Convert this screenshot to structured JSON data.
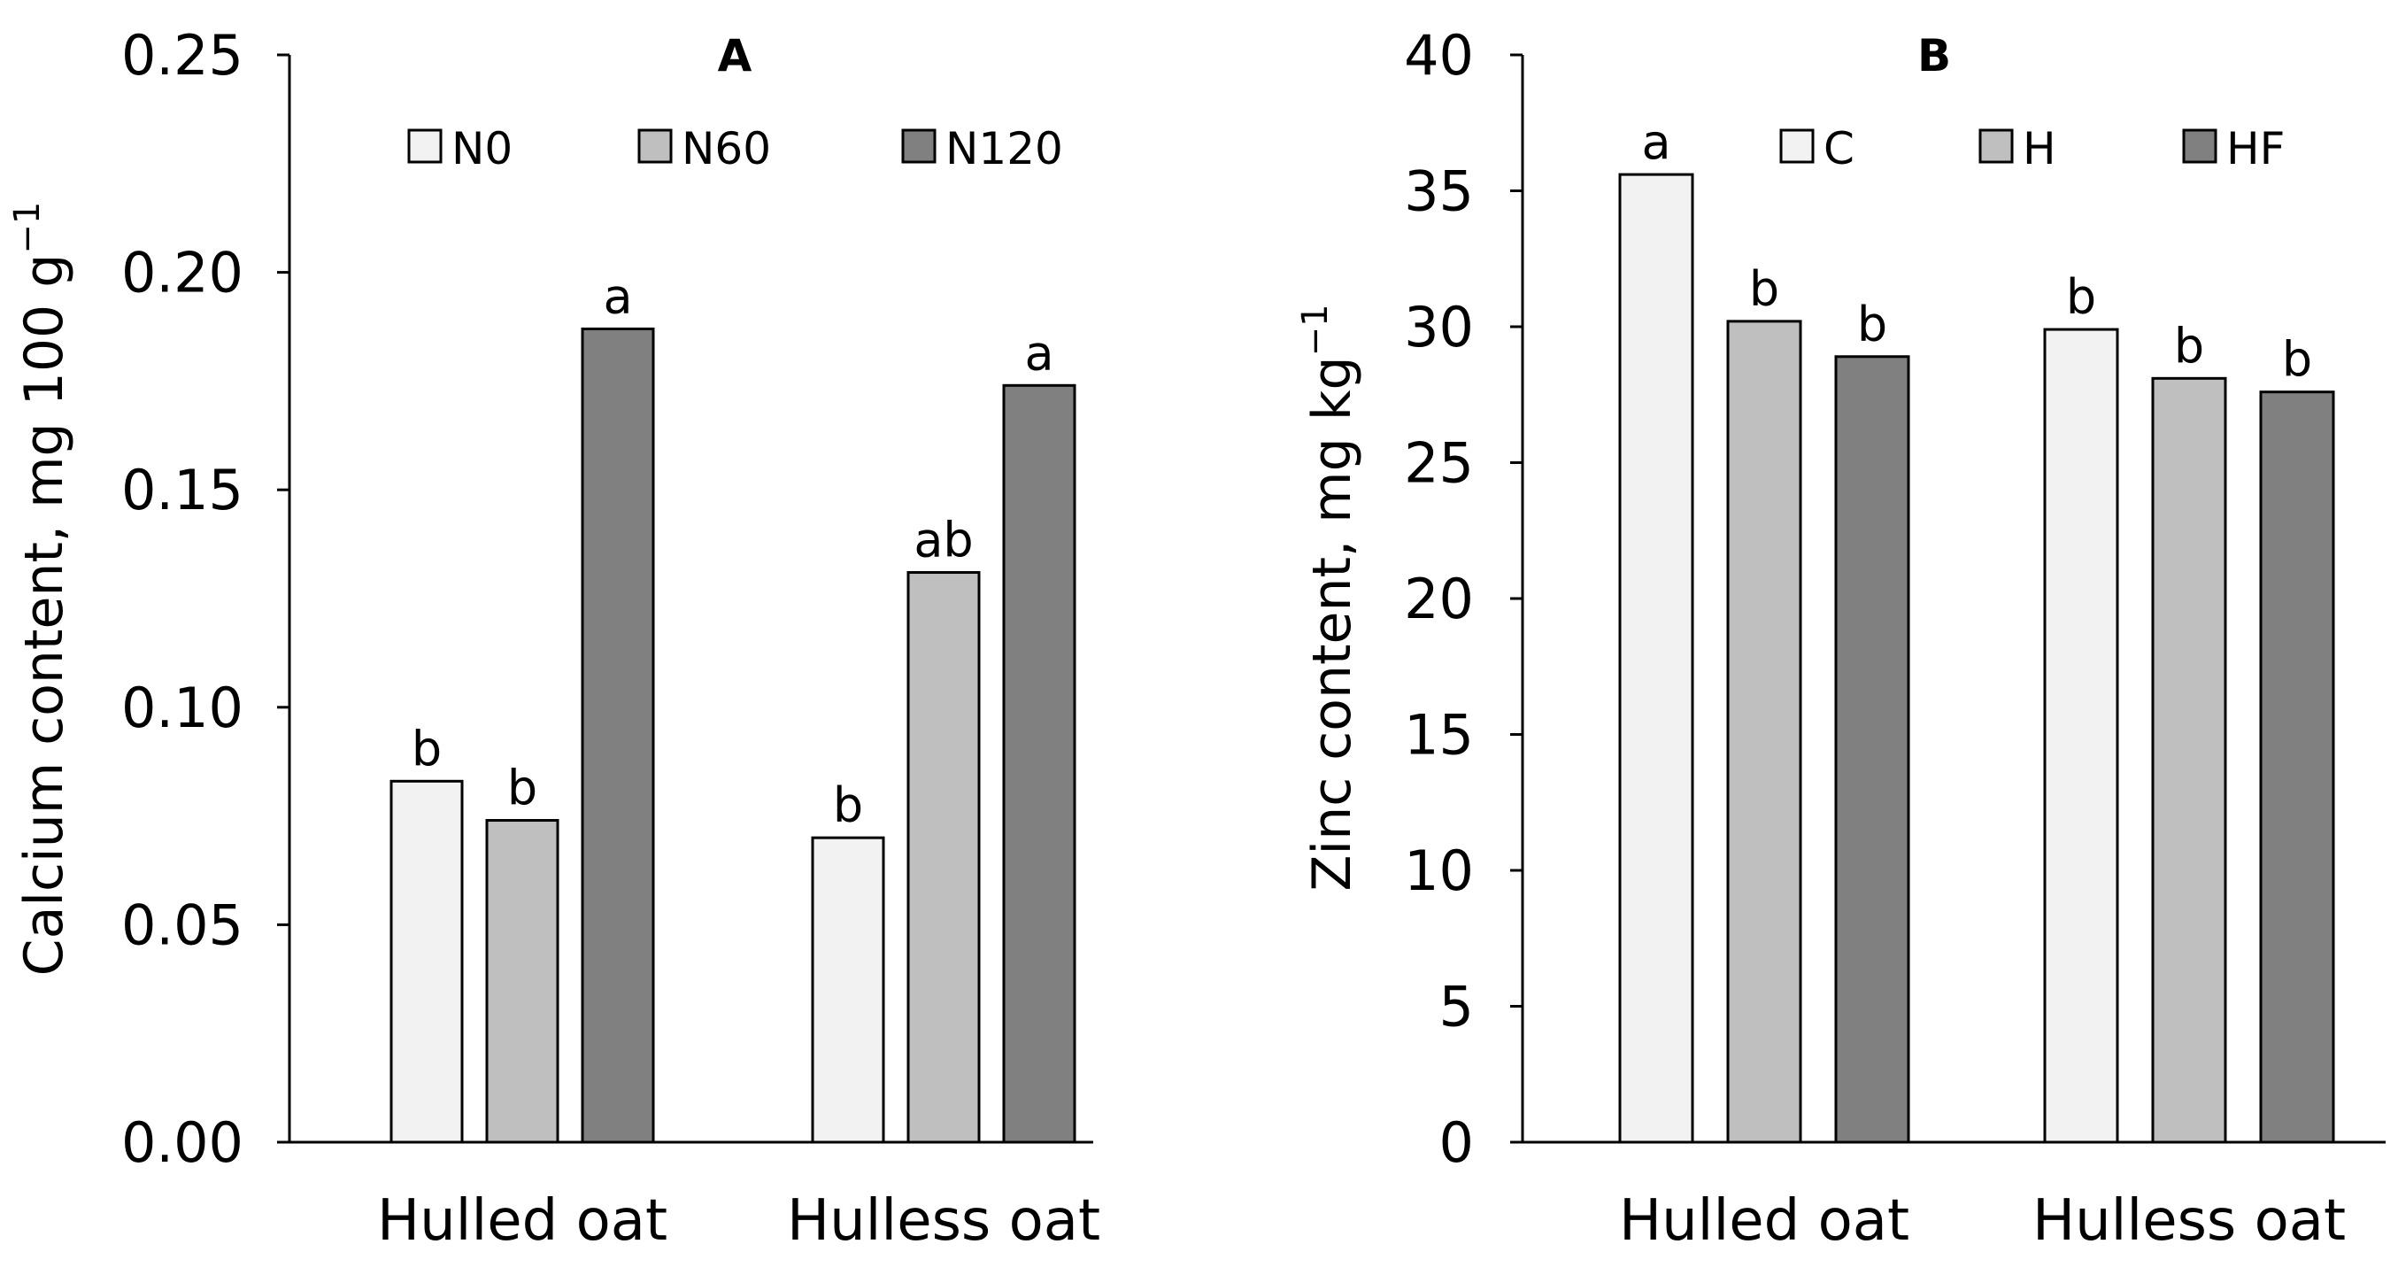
{
  "chart_data": [
    {
      "type": "bar",
      "title": "A",
      "ylabel": "Calcium content, mg 100 g",
      "ylabel_sup": "−1",
      "xlabel": "",
      "ylim": [
        0,
        0.25
      ],
      "yticks": [
        "0.00",
        "0.05",
        "0.10",
        "0.15",
        "0.20",
        "0.25"
      ],
      "grid": false,
      "legend_position": "top",
      "categories": [
        "Hulled oat",
        "Hulless oat"
      ],
      "series": [
        {
          "name": "N0",
          "color": "#f2f2f2",
          "values": [
            0.083,
            0.07
          ],
          "labels": [
            "b",
            "b"
          ]
        },
        {
          "name": "N60",
          "color": "#bfbfbf",
          "values": [
            0.074,
            0.131
          ],
          "labels": [
            "b",
            "ab"
          ]
        },
        {
          "name": "N120",
          "color": "#808080",
          "values": [
            0.187,
            0.174
          ],
          "labels": [
            "a",
            "a"
          ]
        }
      ]
    },
    {
      "type": "bar",
      "title": "B",
      "ylabel": "Zinc content, mg kg",
      "ylabel_sup": "−1",
      "xlabel": "",
      "ylim": [
        0,
        40
      ],
      "yticks": [
        "0",
        "5",
        "10",
        "15",
        "20",
        "25",
        "30",
        "35",
        "40"
      ],
      "grid": false,
      "legend_position": "top",
      "categories": [
        "Hulled oat",
        "Hulless oat"
      ],
      "series": [
        {
          "name": "C",
          "color": "#f2f2f2",
          "values": [
            35.6,
            29.9
          ],
          "labels": [
            "a",
            "b"
          ]
        },
        {
          "name": "H",
          "color": "#bfbfbf",
          "values": [
            30.2,
            28.1
          ],
          "labels": [
            "b",
            "b"
          ]
        },
        {
          "name": "HF",
          "color": "#808080",
          "values": [
            28.9,
            27.6
          ],
          "labels": [
            "b",
            "b"
          ]
        }
      ]
    }
  ]
}
